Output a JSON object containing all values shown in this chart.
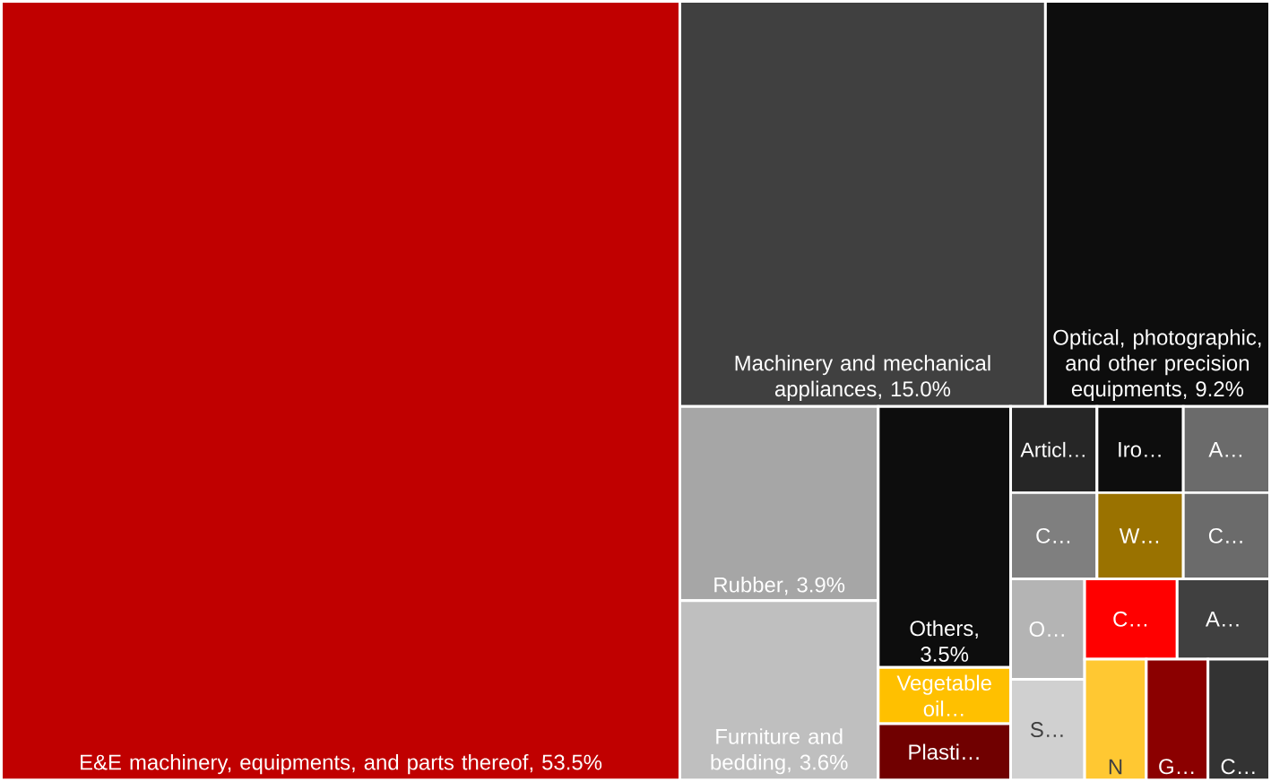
{
  "chart_data": {
    "type": "other",
    "categories": [
      "E&E machinery, equipments, and parts thereof",
      "Machinery and mechanical appliances",
      "Optical, photographic, and other precision equipments",
      "Rubber",
      "Furniture and bedding",
      "Others",
      "Vegetable oil…",
      "Plasti…",
      "Articl…",
      "Iro…",
      "A…",
      "C…",
      "W…",
      "C…",
      "O…",
      "S…",
      "C…",
      "A…",
      "N",
      "G…",
      "C…"
    ],
    "values": [
      53.5,
      15.0,
      9.2,
      3.9,
      3.6,
      3.5,
      null,
      null,
      null,
      null,
      null,
      null,
      null,
      null,
      null,
      null,
      null,
      null,
      null,
      null,
      null
    ],
    "value_labels": [
      ", 53.5%",
      ", 15.0%",
      ", 9.2%",
      ", 3.9%",
      ", 3.6%",
      ", 3.5%",
      null,
      null,
      null,
      null,
      null,
      null,
      null,
      null,
      null,
      null,
      null,
      null,
      null,
      null,
      null
    ],
    "colors": [
      "#c00000",
      "#404040",
      "#0d0d0d",
      "#a6a6a6",
      "#bfbfbf",
      "#0d0d0d",
      "#ffc000",
      "#700000",
      "#262626",
      "#0d0d0d",
      "#6b6b6b",
      "#7f7f7f",
      "#9a7200",
      "#6b6b6b",
      "#b4b4b4",
      "#d0d0d0",
      "#ff0000",
      "#404040",
      "#ffc832",
      "#8b0000",
      "#333333"
    ]
  }
}
